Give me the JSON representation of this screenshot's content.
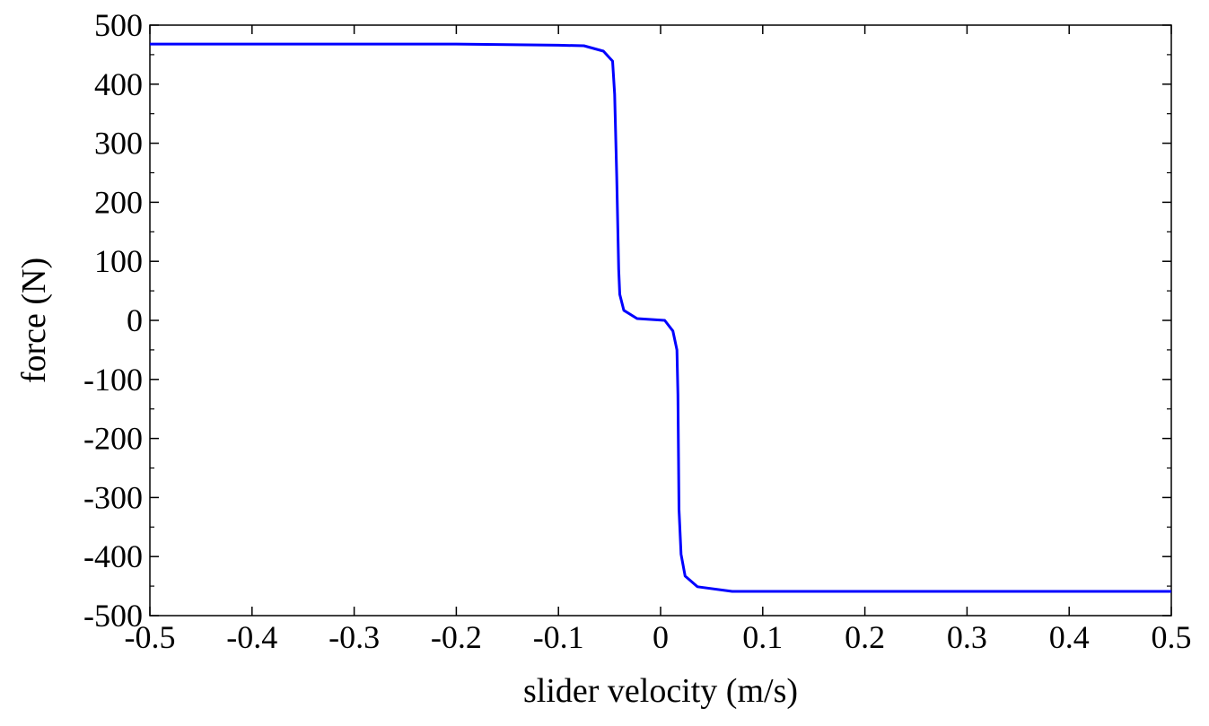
{
  "chart_data": {
    "type": "line",
    "title": "",
    "xlabel": "slider velocity (m/s)",
    "ylabel": "force (N)",
    "xlim": [
      -0.5,
      0.5
    ],
    "ylim": [
      -500,
      500
    ],
    "xticks": [
      -0.5,
      -0.4,
      -0.3,
      -0.2,
      -0.1,
      0,
      0.1,
      0.2,
      0.3,
      0.4,
      0.5
    ],
    "xtick_labels": [
      "-0.5",
      "-0.4",
      "-0.3",
      "-0.2",
      "-0.1",
      "0",
      "0.1",
      "0.2",
      "0.3",
      "0.4",
      "0.5"
    ],
    "yticks": [
      500,
      400,
      300,
      200,
      100,
      0,
      -100,
      -200,
      -300,
      -400,
      -500
    ],
    "ytick_labels": [
      "500",
      "400",
      "300",
      "200",
      "100",
      "0",
      "-100",
      "-200",
      "-300",
      "-400",
      "-500"
    ],
    "grid": false,
    "series": [
      {
        "name": "force",
        "color": "#0000ff",
        "x": [
          -0.5,
          -0.2,
          -0.1,
          -0.075,
          -0.056,
          -0.047,
          -0.045,
          -0.043,
          -0.041,
          -0.04,
          -0.036,
          -0.023,
          0.004,
          0.012,
          0.016,
          0.017,
          0.018,
          0.02,
          0.024,
          0.036,
          0.07,
          0.2,
          0.5
        ],
        "y": [
          468,
          468,
          466,
          465,
          456,
          439,
          383,
          245,
          87,
          44,
          17,
          3,
          0,
          -18,
          -50,
          -125,
          -320,
          -396,
          -433,
          -451,
          -459,
          -459,
          -459
        ]
      }
    ]
  }
}
